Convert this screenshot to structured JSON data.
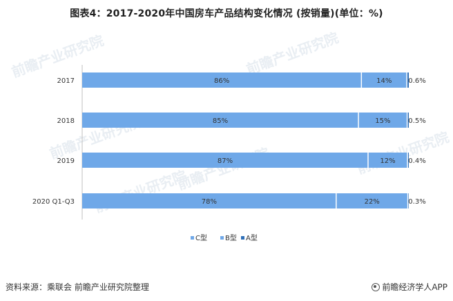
{
  "title": "图表4：2017-2020年中国房车产品结构变化情况 (按销量)(单位：%)",
  "chart_data": {
    "type": "bar",
    "orientation": "horizontal",
    "stacked": true,
    "percent_stacked": true,
    "categories": [
      "2017",
      "2018",
      "2019",
      "2020 Q1-Q3"
    ],
    "series": [
      {
        "name": "C型",
        "values": [
          86,
          85,
          87,
          78
        ],
        "labels": [
          "86%",
          "85%",
          "87%",
          "78%"
        ],
        "color": "#6fa8e8"
      },
      {
        "name": "B型",
        "values": [
          14,
          15,
          12,
          22
        ],
        "labels": [
          "14%",
          "15%",
          "12%",
          "22%"
        ],
        "color": "#6fa8e8"
      },
      {
        "name": "A型",
        "values": [
          0.6,
          0.5,
          0.4,
          0.3
        ],
        "labels": [
          "0.6%",
          "0.5%",
          "0.4%",
          "0.3%"
        ],
        "color": "#2f6fb8"
      }
    ],
    "legend": {
      "position": "bottom",
      "items": [
        "C型",
        "B型",
        "A型"
      ]
    },
    "grid": false
  },
  "footer": {
    "source": "资料来源：乘联会 前瞻产业研究院整理",
    "brand": "前瞻经济学人APP"
  },
  "watermark": {
    "text": "前瞻产业研究院"
  }
}
